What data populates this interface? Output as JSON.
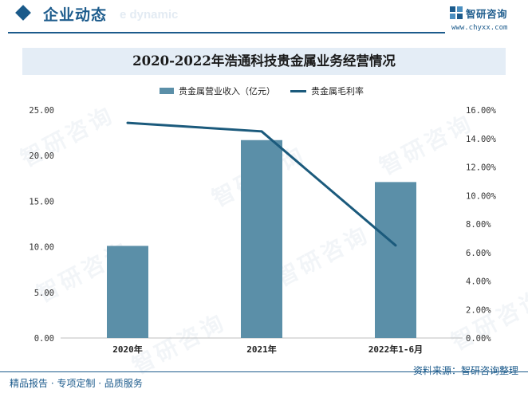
{
  "header": {
    "section_title": "企业动态",
    "section_subtitle": "e dynamic"
  },
  "brand": {
    "name": "智研咨询",
    "url": "www.chyxx.com",
    "watermark": "智研咨询"
  },
  "footer": {
    "left_text": "精品报告 · 专项定制 · 品质服务",
    "source_text": "资料来源：智研咨询整理"
  },
  "colors": {
    "bar": "#5b8fa8",
    "line": "#1b5a7c",
    "accent": "#1c5b8c"
  },
  "chart_data": {
    "type": "bar",
    "title": "2020-2022年浩通科技贵金属业务经营情况",
    "categories": [
      "2020年",
      "2021年",
      "2022年1-6月"
    ],
    "series": [
      {
        "name": "贵金属营业收入（亿元）",
        "type": "bar",
        "axis": "left",
        "values": [
          10.1,
          21.7,
          17.1
        ]
      },
      {
        "name": "贵金属毛利率",
        "type": "line",
        "axis": "right",
        "values": [
          15.1,
          14.5,
          6.5
        ]
      }
    ],
    "y_left": {
      "min": 0,
      "max": 25,
      "ticks": [
        "0.00",
        "5.00",
        "10.00",
        "15.00",
        "20.00",
        "25.00"
      ]
    },
    "y_right": {
      "min": 0,
      "max": 16,
      "ticks": [
        "0.00%",
        "2.00%",
        "4.00%",
        "6.00%",
        "8.00%",
        "10.00%",
        "12.00%",
        "14.00%",
        "16.00%"
      ]
    },
    "grid": false,
    "legend_position": "top"
  }
}
